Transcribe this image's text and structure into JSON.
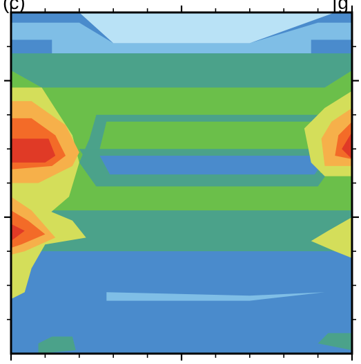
{
  "panel": {
    "label": "(c)",
    "corner_label": "[g"
  },
  "colors": {
    "background": "#ffffff",
    "frame": "#000000",
    "levels": [
      "#4a8bcc",
      "#7fbee6",
      "#b9e2f6",
      "#4ba28a",
      "#6bbf4a",
      "#d4de5a",
      "#f6b04a",
      "#f36b28",
      "#e03a26"
    ]
  },
  "chart_data": {
    "type": "heatmap",
    "subtype": "filled-contour",
    "title": "",
    "xlabel": "",
    "ylabel": "",
    "tick_labels_visible": false,
    "xlim": [
      0,
      10
    ],
    "ylim": [
      0,
      10
    ],
    "x_major_ticks": [
      0,
      5,
      10
    ],
    "x_minor_ticks": [
      1,
      2,
      3,
      4,
      6,
      7,
      8,
      9
    ],
    "y_major_ticks": [
      8,
      4
    ],
    "y_minor_ticks": [
      9,
      7,
      6,
      5,
      3,
      2,
      1
    ],
    "level_colors": [
      "#4a8bcc",
      "#7fbee6",
      "#b9e2f6",
      "#4ba28a",
      "#6bbf4a",
      "#d4de5a",
      "#f6b04a",
      "#f36b28",
      "#e03a26"
    ],
    "regions": [
      {
        "name": "upper-band-mid-blue",
        "color": "#7fbee6",
        "points": [
          [
            0,
            9.7
          ],
          [
            2.0,
            9.7
          ],
          [
            3.0,
            9.1
          ],
          [
            7.0,
            9.1
          ],
          [
            9.0,
            9.7
          ],
          [
            10,
            9.7
          ],
          [
            10,
            9.2
          ],
          [
            8.8,
            9.2
          ],
          [
            8.8,
            8.8
          ],
          [
            1.2,
            8.8
          ],
          [
            1.2,
            9.2
          ],
          [
            0,
            9.2
          ]
        ]
      },
      {
        "name": "upper-band-light-blue",
        "color": "#b9e2f6",
        "points": [
          [
            2.0,
            10
          ],
          [
            3.0,
            9.1
          ],
          [
            7.0,
            9.1
          ],
          [
            9.5,
            10
          ]
        ]
      },
      {
        "name": "upper-green-band",
        "color": "#4ba28a",
        "points": [
          [
            0,
            8.8
          ],
          [
            10,
            8.8
          ],
          [
            10,
            8.3
          ],
          [
            9.2,
            7.8
          ],
          [
            0.9,
            7.8
          ],
          [
            0,
            8.3
          ]
        ]
      },
      {
        "name": "central-green",
        "color": "#6bbf4a",
        "points": [
          [
            0,
            8.3
          ],
          [
            0.9,
            7.8
          ],
          [
            9.2,
            7.8
          ],
          [
            10,
            8.3
          ],
          [
            10,
            3.4
          ],
          [
            0,
            3.4
          ]
        ]
      },
      {
        "name": "middle-green-band",
        "color": "#4ba28a",
        "points": [
          [
            2.5,
            7.0
          ],
          [
            9.0,
            7.0
          ],
          [
            9.2,
            6.3
          ],
          [
            9.5,
            5.6
          ],
          [
            9.0,
            4.9
          ],
          [
            2.5,
            4.9
          ],
          [
            2.0,
            5.6
          ],
          [
            2.3,
            6.3
          ]
        ]
      },
      {
        "name": "central-green-core",
        "color": "#6bbf4a",
        "points": [
          [
            2.8,
            6.8
          ],
          [
            9.1,
            6.8
          ],
          [
            9.3,
            6.4
          ],
          [
            9.4,
            5.3
          ],
          [
            2.8,
            5.3
          ],
          [
            2.6,
            6.0
          ]
        ]
      },
      {
        "name": "middle-green-inner-band",
        "color": "#4ba28a",
        "points": [
          [
            2.0,
            6.0
          ],
          [
            9.4,
            6.0
          ],
          [
            9.0,
            5.2
          ],
          [
            2.5,
            5.2
          ]
        ]
      },
      {
        "name": "middle-blue-lens",
        "color": "#4a8bcc",
        "points": [
          [
            2.6,
            5.8
          ],
          [
            9.3,
            5.8
          ],
          [
            8.9,
            5.25
          ],
          [
            2.9,
            5.25
          ]
        ]
      },
      {
        "name": "lower-green-band",
        "color": "#4ba28a",
        "points": [
          [
            0,
            4.2
          ],
          [
            10,
            4.2
          ],
          [
            10,
            3.0
          ],
          [
            1.0,
            3.0
          ],
          [
            0,
            3.0
          ]
        ]
      },
      {
        "name": "lower-blue-field",
        "color": "#4a8bcc",
        "points": [
          [
            0,
            3.0
          ],
          [
            10,
            3.0
          ],
          [
            10,
            0
          ],
          [
            0,
            0
          ]
        ]
      },
      {
        "name": "lower-light-blue-streak",
        "color": "#7fbee6",
        "points": [
          [
            2.8,
            1.8
          ],
          [
            7.0,
            1.7
          ],
          [
            9.2,
            1.8
          ],
          [
            7.0,
            1.55
          ],
          [
            2.8,
            1.55
          ]
        ]
      },
      {
        "name": "bottom-green-wisp-left",
        "color": "#4ba28a",
        "points": [
          [
            1.2,
            0.5
          ],
          [
            1.8,
            0.5
          ],
          [
            1.9,
            0.1
          ],
          [
            0.8,
            0.0
          ],
          [
            0.8,
            0.3
          ]
        ]
      },
      {
        "name": "bottom-green-wisp-right",
        "color": "#4ba28a",
        "points": [
          [
            9.3,
            0.6
          ],
          [
            10,
            0.6
          ],
          [
            10,
            0.1
          ],
          [
            9.0,
            0.3
          ]
        ]
      },
      {
        "name": "left-hotspot-yellow",
        "color": "#d4de5a",
        "points": [
          [
            0,
            7.8
          ],
          [
            0.9,
            7.8
          ],
          [
            1.8,
            6.4
          ],
          [
            2.0,
            5.6
          ],
          [
            1.7,
            4.6
          ],
          [
            1.0,
            4.0
          ],
          [
            0,
            3.7
          ]
        ]
      },
      {
        "name": "left-hotspot-orange",
        "color": "#f6b04a",
        "points": [
          [
            0,
            7.4
          ],
          [
            0.6,
            7.4
          ],
          [
            1.6,
            6.7
          ],
          [
            2.0,
            5.9
          ],
          [
            1.8,
            5.5
          ],
          [
            0.8,
            5.0
          ],
          [
            0,
            5.0
          ]
        ]
      },
      {
        "name": "left-hotspot-dark-orange",
        "color": "#f36b28",
        "points": [
          [
            0,
            6.9
          ],
          [
            0.6,
            6.9
          ],
          [
            1.3,
            6.4
          ],
          [
            1.6,
            5.8
          ],
          [
            1.2,
            5.5
          ],
          [
            0,
            5.4
          ]
        ]
      },
      {
        "name": "left-hotspot-red",
        "color": "#e03a26",
        "points": [
          [
            0,
            6.3
          ],
          [
            1.1,
            6.3
          ],
          [
            1.3,
            5.8
          ],
          [
            1.0,
            5.6
          ],
          [
            0,
            5.6
          ]
        ]
      },
      {
        "name": "left-lower-yellow",
        "color": "#d4de5a",
        "points": [
          [
            0,
            4.8
          ],
          [
            0.6,
            4.4
          ],
          [
            1.8,
            3.9
          ],
          [
            2.2,
            3.4
          ],
          [
            1.0,
            3.2
          ],
          [
            0.6,
            2.5
          ],
          [
            0.4,
            1.8
          ],
          [
            0,
            1.6
          ]
        ]
      },
      {
        "name": "left-lower-orange",
        "color": "#f6b04a",
        "points": [
          [
            0,
            4.6
          ],
          [
            0.6,
            4.2
          ],
          [
            1.3,
            3.4
          ],
          [
            0.4,
            3.0
          ],
          [
            0,
            2.9
          ]
        ]
      },
      {
        "name": "left-lower-dark-orange",
        "color": "#f36b28",
        "points": [
          [
            0,
            4.2
          ],
          [
            0.5,
            3.9
          ],
          [
            1.0,
            3.5
          ],
          [
            0.3,
            3.2
          ],
          [
            0,
            3.1
          ]
        ]
      },
      {
        "name": "left-lower-red",
        "color": "#e03a26",
        "points": [
          [
            0,
            3.8
          ],
          [
            0.4,
            3.6
          ],
          [
            0.0,
            3.3
          ]
        ]
      },
      {
        "name": "right-hotspot-yellow",
        "color": "#d4de5a",
        "points": [
          [
            10,
            7.7
          ],
          [
            9.2,
            7.2
          ],
          [
            8.6,
            6.6
          ],
          [
            8.8,
            5.6
          ],
          [
            9.2,
            5.2
          ],
          [
            10,
            5.2
          ]
        ]
      },
      {
        "name": "right-hotspot-orange",
        "color": "#f6b04a",
        "points": [
          [
            10,
            7.2
          ],
          [
            9.4,
            6.8
          ],
          [
            9.1,
            6.3
          ],
          [
            9.2,
            5.5
          ],
          [
            10,
            5.5
          ]
        ]
      },
      {
        "name": "right-hotspot-dark-orange",
        "color": "#f36b28",
        "points": [
          [
            10,
            6.8
          ],
          [
            9.6,
            6.4
          ],
          [
            9.5,
            5.8
          ],
          [
            10,
            5.7
          ]
        ]
      },
      {
        "name": "right-hotspot-red",
        "color": "#e03a26",
        "points": [
          [
            10,
            6.5
          ],
          [
            9.7,
            6.0
          ],
          [
            10,
            5.7
          ]
        ]
      },
      {
        "name": "right-lower-yellow",
        "color": "#d4de5a",
        "points": [
          [
            10,
            4.0
          ],
          [
            9.3,
            3.6
          ],
          [
            8.8,
            3.3
          ],
          [
            9.5,
            3.0
          ],
          [
            10,
            2.8
          ]
        ]
      }
    ]
  }
}
